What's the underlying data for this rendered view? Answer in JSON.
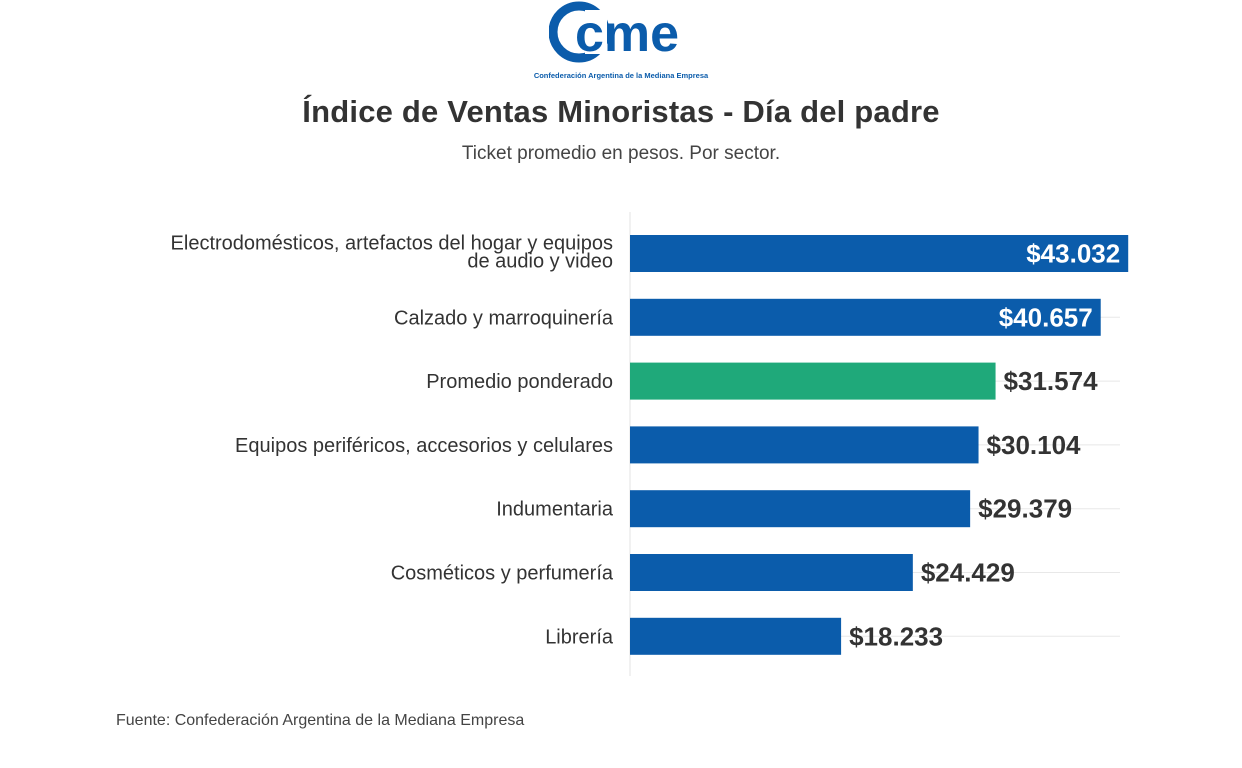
{
  "logo": {
    "wordmark": "cme",
    "caption": "Confederación Argentina de la Mediana Empresa"
  },
  "header": {
    "title": "Índice de Ventas Minoristas - Día del padre",
    "subtitle": "Ticket promedio en pesos. Por sector."
  },
  "footer": {
    "source": "Fuente: Confederación Argentina de la Mediana Empresa"
  },
  "chart_data": {
    "type": "bar",
    "orientation": "horizontal",
    "categories": [
      [
        "Electrodomésticos, artefactos del hogar y equipos",
        "de audio y video"
      ],
      [
        "Calzado y marroquinería"
      ],
      [
        "Promedio ponderado"
      ],
      [
        "Equipos periféricos, accesorios y celulares"
      ],
      [
        "Indumentaria"
      ],
      [
        "Cosméticos y perfumería"
      ],
      [
        "Librería"
      ]
    ],
    "values": [
      43032,
      40657,
      31574,
      30104,
      29379,
      24429,
      18233
    ],
    "value_labels": [
      "$43.032",
      "$40.657",
      "$31.574",
      "$30.104",
      "$29.379",
      "$24.429",
      "$18.233"
    ],
    "label_inside": [
      true,
      true,
      false,
      false,
      false,
      false,
      false
    ],
    "colors": [
      "#0b5cab",
      "#0b5cab",
      "#1fa97a",
      "#0b5cab",
      "#0b5cab",
      "#0b5cab",
      "#0b5cab"
    ],
    "xlim": [
      0,
      45000
    ],
    "grid": true,
    "legend": "none"
  }
}
